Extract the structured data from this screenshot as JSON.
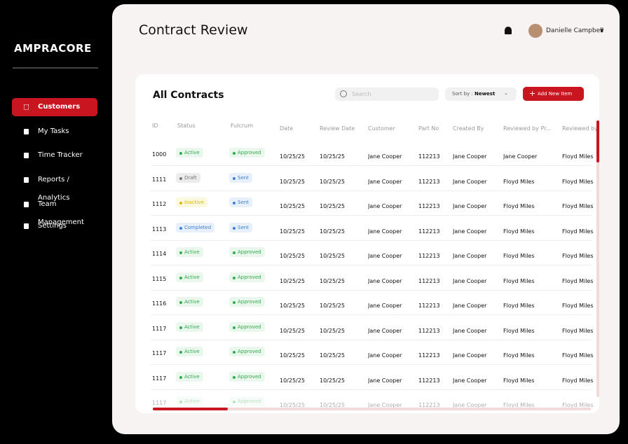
{
  "sidebar": {
    "logo": "AMPRACORE",
    "nav": [
      "Customers",
      "My Tasks",
      "Time Tracker",
      "Reports / Analytics",
      "Team Management",
      "Settings"
    ]
  },
  "header": {
    "title": "Contract Review",
    "user": "Danielle Campbell"
  },
  "card": {
    "title": "All Contracts",
    "search_placeholder": "Search",
    "sort_label": "Sort by :",
    "sort_value": "Newest",
    "add_button": "Add New Item",
    "columns": [
      "ID",
      "Status",
      "Fulcrum",
      "Date",
      "Review Date",
      "Customer",
      "Part No",
      "Created By",
      "Reviewed by Pr...",
      "Reviewed by"
    ],
    "rows": [
      [
        "1000",
        "Active",
        "Approved",
        "10/25/25",
        "10/25/25",
        "Jane Cooper",
        "112213",
        "Jane Cooper",
        "Jane Cooper",
        "Floyd Miles"
      ],
      [
        "1111",
        "Draft",
        "Sent",
        "10/25/25",
        "10/25/25",
        "Jane Cooper",
        "112213",
        "Jane Cooper",
        "Floyd Miles",
        "Floyd Miles"
      ],
      [
        "1112",
        "Inactive",
        "Sent",
        "10/25/25",
        "10/25/25",
        "Jane Cooper",
        "112213",
        "Jane Cooper",
        "Floyd Miles",
        "Floyd Miles"
      ],
      [
        "1113",
        "Completed",
        "Sent",
        "10/25/25",
        "10/25/25",
        "Jane Cooper",
        "112213",
        "Jane Cooper",
        "Floyd Miles",
        "Floyd Miles"
      ],
      [
        "1114",
        "Active",
        "Approved",
        "10/25/25",
        "10/25/25",
        "Jane Cooper",
        "112213",
        "Jane Cooper",
        "Floyd Miles",
        "Floyd Miles"
      ],
      [
        "1115",
        "Active",
        "Approved",
        "10/25/25",
        "10/25/25",
        "Jane Cooper",
        "112213",
        "Jane Cooper",
        "Floyd Miles",
        "Floyd Miles"
      ],
      [
        "1116",
        "Active",
        "Approved",
        "10/25/25",
        "10/25/25",
        "Jane Cooper",
        "112213",
        "Jane Cooper",
        "Floyd Miles",
        "Floyd Miles"
      ],
      [
        "1117",
        "Active",
        "Approved",
        "10/25/25",
        "10/25/25",
        "Jane Cooper",
        "112213",
        "Jane Cooper",
        "Floyd Miles",
        "Floyd Miles"
      ],
      [
        "1117",
        "Active",
        "Approved",
        "10/25/25",
        "10/25/25",
        "Jane Cooper",
        "112213",
        "Jane Cooper",
        "Floyd Miles",
        "Floyd Miles"
      ],
      [
        "1117",
        "Active",
        "Approved",
        "10/25/25",
        "10/25/25",
        "Jane Cooper",
        "112213",
        "Jane Cooper",
        "Floyd Miles",
        "Floyd Miles"
      ],
      [
        "1117",
        "Active",
        "Approved",
        "10/25/25",
        "10/25/25",
        "Jane Cooper",
        "112213",
        "Jane Cooper",
        "Floyd Miles",
        "Floyd Miles"
      ]
    ]
  }
}
